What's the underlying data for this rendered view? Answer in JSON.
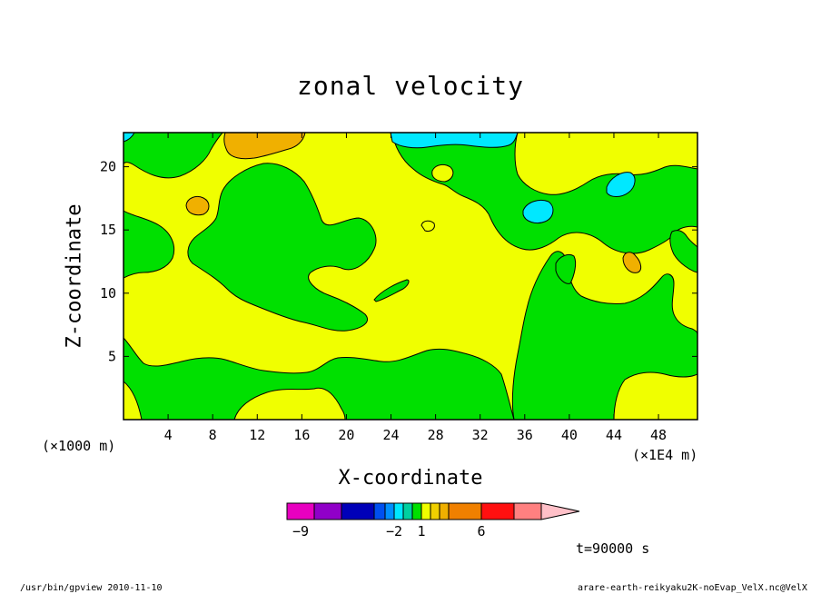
{
  "chart_data": {
    "type": "heatmap",
    "title": "zonal velocity",
    "xlabel": "X-coordinate",
    "ylabel": "Z-coordinate",
    "x_unit": "(×1000 m)",
    "x_unit_right": "(×1E4 m)",
    "xlim": [
      0,
      51.5
    ],
    "ylim": [
      0,
      22.7
    ],
    "x_ticks": [
      4,
      8,
      12,
      16,
      20,
      24,
      28,
      32,
      36,
      40,
      44,
      48
    ],
    "y_ticks": [
      5,
      10,
      15,
      20
    ],
    "levels": [
      -10,
      -8,
      -6,
      -4,
      -3,
      -2,
      -1,
      0,
      1,
      2,
      3,
      4,
      6,
      8,
      10
    ],
    "colors": [
      "#e800c0",
      "#9000c8",
      "#0000b8",
      "#0050f0",
      "#0090ff",
      "#00e8ff",
      "#00d0a0",
      "#00e000",
      "#f0ff00",
      "#f0d000",
      "#f0b000",
      "#f08000",
      "#ff1010",
      "#ff8080",
      "#ffc0c8"
    ],
    "colorbar_labels": [
      {
        "value": -9,
        "text": "−9"
      },
      {
        "value": -2,
        "text": "−2"
      },
      {
        "value": 1,
        "text": "1"
      },
      {
        "value": 6,
        "text": "6"
      }
    ],
    "regions": [
      {
        "level": "yellow",
        "fill": "#f0ff00",
        "desc": "background 0 to 2"
      },
      {
        "level": "green",
        "fill": "#00e000",
        "desc": "-1 to 0"
      },
      {
        "level": "orange",
        "fill": "#f0b000",
        "desc": "2 to 3"
      },
      {
        "level": "cyan",
        "fill": "#00e8ff",
        "desc": "-2 to -1"
      }
    ]
  },
  "annotations": {
    "time": "t=90000 s",
    "footer_left": "/usr/bin/gpview  2010-11-10",
    "footer_right": "arare-earth-reikyaku2K-noEvap_VelX.nc@VelX"
  }
}
